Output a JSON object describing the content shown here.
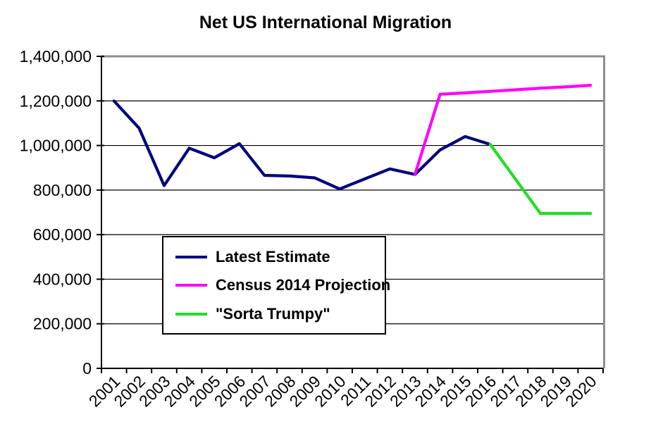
{
  "chart_data": {
    "type": "line",
    "title": "Net US International Migration",
    "xlabel": "",
    "ylabel": "",
    "grid": true,
    "legend_position": "center-left inside plot",
    "plot_border_color": "#8e8e8e",
    "axis_color": "#000000",
    "background_color": "#ffffff",
    "categories": [
      "2001",
      "2002",
      "2003",
      "2004",
      "2005",
      "2006",
      "2007",
      "2008",
      "2009",
      "2010",
      "2011",
      "2012",
      "2013",
      "2014",
      "2015",
      "2016",
      "2017",
      "2018",
      "2019",
      "2020"
    ],
    "y_axis": {
      "min": 0,
      "max": 1400000,
      "step": 200000,
      "tick_labels": [
        "0",
        "200,000",
        "400,000",
        "600,000",
        "800,000",
        "1,000,000",
        "1,200,000",
        "1,400,000"
      ]
    },
    "series": [
      {
        "name": "Latest Estimate",
        "color": "#000080",
        "values": [
          1200000,
          1078000,
          820000,
          988000,
          945000,
          1008000,
          866000,
          863000,
          855000,
          805000,
          850000,
          895000,
          870000,
          980000,
          1040000,
          1005000,
          null,
          null,
          null,
          null
        ]
      },
      {
        "name": "Census 2014 Projection",
        "color": "#FF00FF",
        "values": [
          null,
          null,
          null,
          null,
          null,
          null,
          null,
          null,
          null,
          null,
          null,
          null,
          870000,
          1230000,
          1236000,
          1243000,
          1250000,
          1257000,
          1263000,
          1270000
        ]
      },
      {
        "name": "\"Sorta Trumpy\"",
        "color": "#22DD22",
        "values": [
          null,
          null,
          null,
          null,
          null,
          null,
          null,
          null,
          null,
          null,
          null,
          null,
          null,
          null,
          null,
          1005000,
          850000,
          695000,
          695000,
          695000
        ]
      }
    ]
  }
}
